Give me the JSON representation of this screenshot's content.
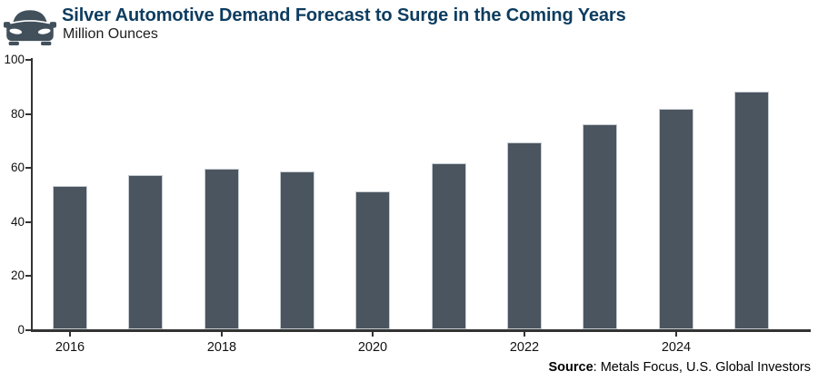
{
  "header": {
    "title": "Silver Automotive Demand Forecast to Surge in the Coming Years",
    "subtitle": "Million Ounces"
  },
  "chart_data": {
    "type": "bar",
    "title": "Silver Automotive Demand Forecast to Surge in the Coming Years",
    "ylabel": "Million Ounces",
    "xlabel": "",
    "categories": [
      "2016",
      "2017",
      "2018",
      "2019",
      "2020",
      "2021",
      "2022",
      "2023",
      "2024",
      "2025"
    ],
    "values": [
      53,
      57,
      59.5,
      58.5,
      51,
      61.5,
      69,
      76,
      81.5,
      88
    ],
    "ylim": [
      0,
      100
    ],
    "y_ticks": [
      0,
      20,
      40,
      60,
      80,
      100
    ],
    "x_tick_labels": [
      "2016",
      "2018",
      "2020",
      "2022",
      "2024"
    ],
    "x_labeled_indices": [
      0,
      2,
      4,
      6,
      8
    ],
    "grid": "off",
    "legend": "none",
    "bar_color": "#4a555f",
    "bar_border_color": "#c6ccd2"
  },
  "footer": {
    "source_label": "Source",
    "source_text": ": Metals Focus, U.S. Global Investors"
  },
  "colors": {
    "title": "#0d3c5f",
    "icon": "#41505b",
    "axis": "#333333",
    "text": "#111111"
  }
}
